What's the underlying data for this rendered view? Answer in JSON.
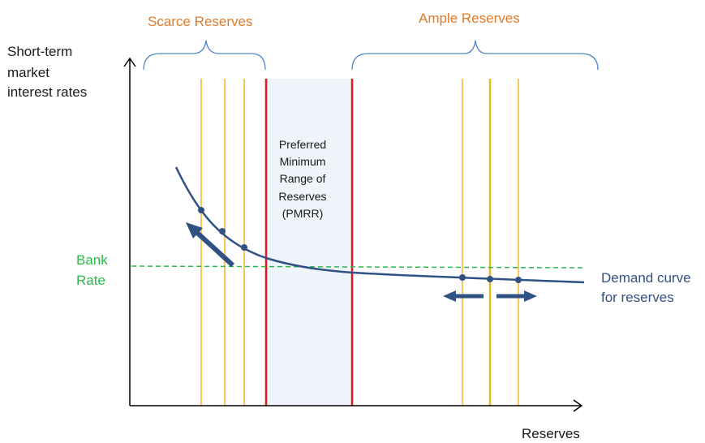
{
  "labels": {
    "scarce": "Scarce Reserves",
    "ample": "Ample Reserves",
    "yaxis": [
      "Short-term",
      "market",
      "interest rates"
    ],
    "xaxis": "Reserves",
    "bank_rate": [
      "Bank",
      "Rate"
    ],
    "pmrr": [
      "Preferred",
      "Minimum",
      "Range of",
      "Reserves",
      "(PMRR)"
    ],
    "demand": [
      "Demand curve",
      "for reserves"
    ]
  },
  "colors": {
    "orange": "#e07b2a",
    "navy": "#2f5183",
    "green": "#2db84c",
    "red": "#e0191b",
    "yellow": "#f6c95a",
    "yellow_dark": "#f0b32a",
    "band": "#eef4fa",
    "brace": "#4f86c6"
  },
  "icons": {
    "left_arrow": "arrow-up-left-icon",
    "center_arrows": "left-right-arrows-icon"
  }
}
